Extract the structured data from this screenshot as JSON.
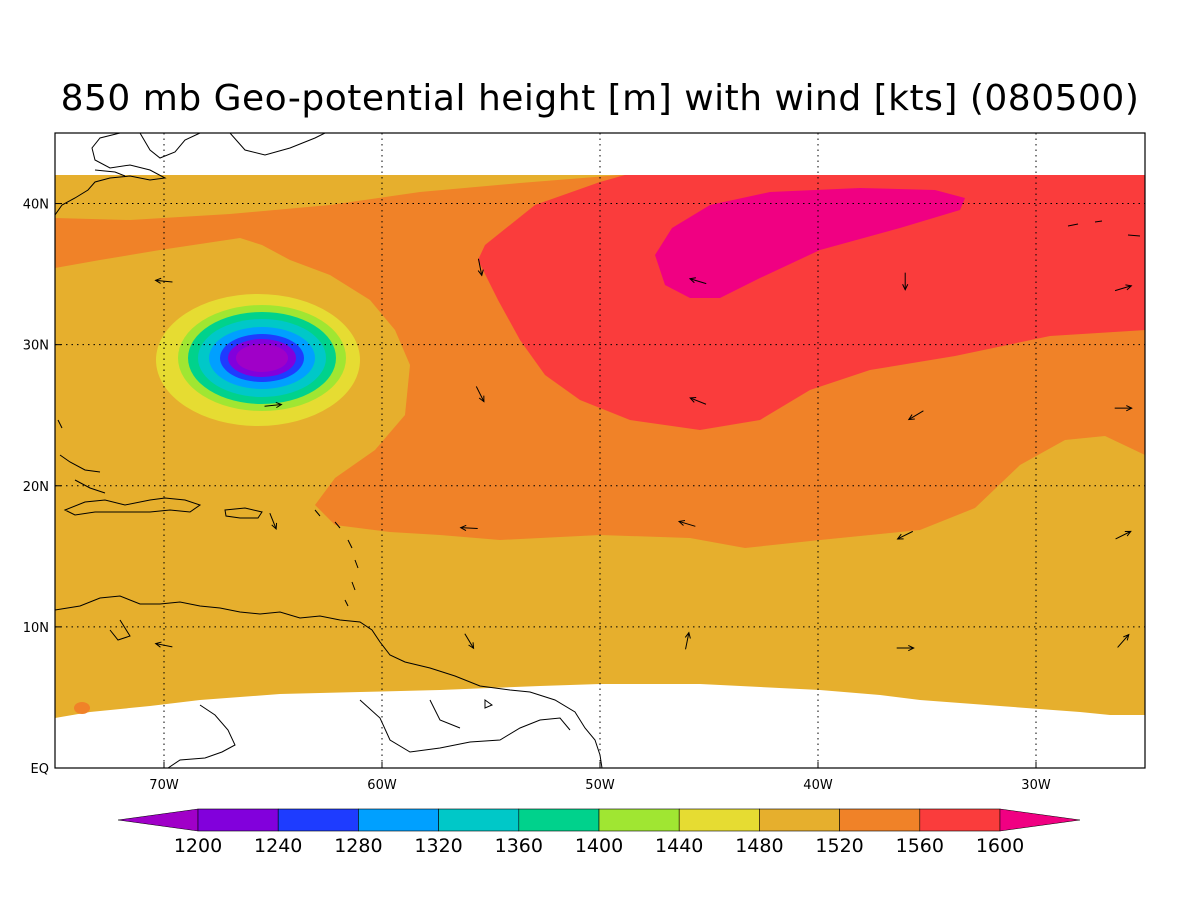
{
  "title": "850 mb Geo-potential height [m] with wind [kts] (080500)",
  "map": {
    "region": "Western North Atlantic",
    "lon_range": [
      -75,
      -25
    ],
    "lat_range": [
      0,
      45
    ],
    "data_lat_range": [
      4,
      42
    ],
    "lon_ticks": [
      {
        "lon": -70,
        "label": "70W"
      },
      {
        "lon": -60,
        "label": "60W"
      },
      {
        "lon": -50,
        "label": "50W"
      },
      {
        "lon": -40,
        "label": "40W"
      },
      {
        "lon": -30,
        "label": "30W"
      }
    ],
    "lat_ticks": [
      {
        "lat": 0,
        "label": "EQ"
      },
      {
        "lat": 10,
        "label": "10N"
      },
      {
        "lat": 20,
        "label": "20N"
      },
      {
        "lat": 30,
        "label": "30N"
      },
      {
        "lat": 40,
        "label": "40N"
      }
    ],
    "low_center": {
      "lon": -65.5,
      "lat": 29,
      "min_height": 1200
    },
    "high_center": {
      "lon": -41,
      "lat": 37,
      "max_height": 1600
    }
  },
  "colorbar": {
    "thresholds": [
      "1200",
      "1240",
      "1280",
      "1320",
      "1360",
      "1400",
      "1440",
      "1480",
      "1520",
      "1560",
      "1600"
    ],
    "colors": [
      "#a000c8",
      "#8200dc",
      "#1e3cff",
      "#00a0ff",
      "#00c8c8",
      "#00d28c",
      "#a0e632",
      "#e6dc32",
      "#e6af2d",
      "#f08228",
      "#fa3c3c",
      "#f00082"
    ]
  },
  "wind_arrows": [
    {
      "lon": -70,
      "lat": 34.5,
      "u": -1,
      "v": 0.1
    },
    {
      "lon": -55.5,
      "lat": 35.5,
      "u": 0.2,
      "v": -1
    },
    {
      "lon": -45.5,
      "lat": 34.5,
      "u": -1,
      "v": 0.3
    },
    {
      "lon": -36,
      "lat": 34.5,
      "u": 0,
      "v": -1
    },
    {
      "lon": -26,
      "lat": 34,
      "u": 1,
      "v": 0.3
    },
    {
      "lon": -65,
      "lat": 25.7,
      "u": 1,
      "v": 0.1
    },
    {
      "lon": -55.5,
      "lat": 26.5,
      "u": 0.5,
      "v": -1
    },
    {
      "lon": -45.5,
      "lat": 26,
      "u": -1,
      "v": 0.4
    },
    {
      "lon": -35.5,
      "lat": 25,
      "u": -1,
      "v": -0.6
    },
    {
      "lon": -26,
      "lat": 25.5,
      "u": 1,
      "v": 0
    },
    {
      "lon": -65,
      "lat": 17.5,
      "u": 0.4,
      "v": -1
    },
    {
      "lon": -56,
      "lat": 17,
      "u": -1,
      "v": 0.05
    },
    {
      "lon": -46,
      "lat": 17.3,
      "u": -1,
      "v": 0.3
    },
    {
      "lon": -36,
      "lat": 16.5,
      "u": -1,
      "v": -0.5
    },
    {
      "lon": -26,
      "lat": 16.5,
      "u": 1,
      "v": 0.5
    },
    {
      "lon": -70,
      "lat": 8.7,
      "u": -1,
      "v": 0.2
    },
    {
      "lon": -56,
      "lat": 9,
      "u": 0.6,
      "v": -1
    },
    {
      "lon": -46,
      "lat": 9,
      "u": 0.2,
      "v": 1
    },
    {
      "lon": -36,
      "lat": 8.5,
      "u": 1,
      "v": 0
    },
    {
      "lon": -26,
      "lat": 9,
      "u": 0.7,
      "v": 0.8
    }
  ]
}
